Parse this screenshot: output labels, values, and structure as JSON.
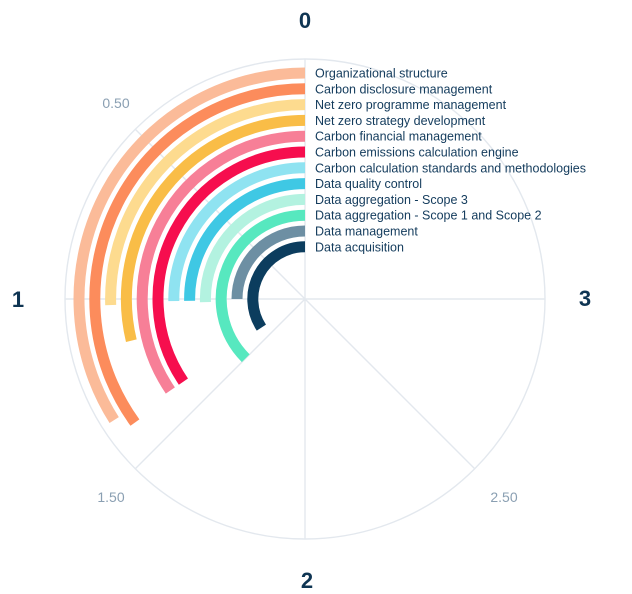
{
  "chart_data": {
    "type": "radial-bar",
    "axis": {
      "min": 0,
      "max": 3,
      "direction": "counterclockwise",
      "major_ticks": [
        {
          "value": 0,
          "label": "0"
        },
        {
          "value": 1,
          "label": "1"
        },
        {
          "value": 2,
          "label": "2"
        },
        {
          "value": 3,
          "label": "3"
        }
      ],
      "minor_ticks": [
        {
          "value": 0.5,
          "label": "0.50"
        },
        {
          "value": 1.5,
          "label": "1.50"
        },
        {
          "value": 2.5,
          "label": "2.50"
        }
      ]
    },
    "grid": true,
    "series": [
      {
        "category": "Organizational structure",
        "value": 1.36,
        "color": "#fbbb99"
      },
      {
        "category": "Carbon disclosure management",
        "value": 1.4,
        "color": "#fc8c5c"
      },
      {
        "category": "Net zero programme management",
        "value": 1.02,
        "color": "#fddb8f"
      },
      {
        "category": "Net zero strategy development",
        "value": 1.15,
        "color": "#f9bd47"
      },
      {
        "category": "Carbon financial management",
        "value": 1.38,
        "color": "#f77f97"
      },
      {
        "category": "Carbon emissions calculation engine",
        "value": 1.38,
        "color": "#f60e4e"
      },
      {
        "category": "Carbon calculation standards and methodologies",
        "value": 1.01,
        "color": "#8fe3f1"
      },
      {
        "category": "Data quality control",
        "value": 1.01,
        "color": "#3fc8e4"
      },
      {
        "category": "Data aggregation - Scope 3",
        "value": 1.02,
        "color": "#b3f2e0"
      },
      {
        "category": "Data aggregation - Scope 1 and Scope 2",
        "value": 1.5,
        "color": "#57e8bf"
      },
      {
        "category": "Data management",
        "value": 1.0,
        "color": "#6d8fa3"
      },
      {
        "category": "Data acquisition",
        "value": 1.37,
        "color": "#0c3d5e"
      }
    ]
  }
}
